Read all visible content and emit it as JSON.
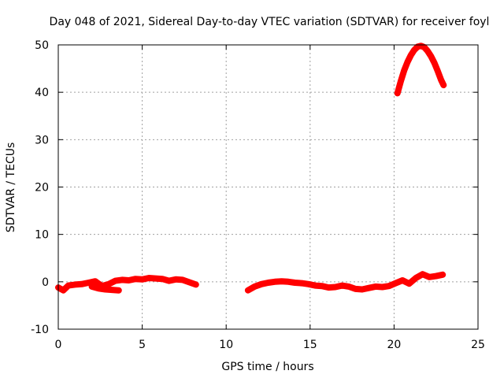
{
  "chart_data": {
    "type": "scatter",
    "title": "Day 048 of 2021, Sidereal Day-to-day VTEC variation (SDTVAR) for receiver foyl",
    "xlabel": "GPS time / hours",
    "ylabel": "SDTVAR / TECUs",
    "xlim": [
      0,
      25
    ],
    "ylim": [
      -10,
      50
    ],
    "xticks": [
      0,
      5,
      10,
      15,
      20,
      25
    ],
    "yticks": [
      -10,
      0,
      10,
      20,
      30,
      40,
      50
    ],
    "xtick_labels": [
      "0",
      "5",
      "10",
      "15",
      "20",
      "25"
    ],
    "ytick_labels": [
      "-10",
      "0",
      "10",
      "20",
      "30",
      "40",
      "50"
    ],
    "grid": true,
    "series_color": "#ff0000",
    "series": [
      {
        "name": "segment-1",
        "x": [
          0.0,
          0.3,
          0.6,
          1.0,
          1.4,
          1.8,
          2.2,
          2.6,
          3.0,
          3.4,
          3.8,
          4.2,
          4.6,
          5.0,
          5.4,
          5.8,
          6.2,
          6.6,
          7.0,
          7.4,
          7.8,
          8.2
        ],
        "y": [
          -1.2,
          -1.8,
          -0.8,
          -0.6,
          -0.5,
          -0.2,
          0.1,
          -0.9,
          -0.5,
          0.2,
          0.4,
          0.3,
          0.6,
          0.5,
          0.8,
          0.7,
          0.6,
          0.2,
          0.5,
          0.4,
          -0.1,
          -0.6
        ]
      },
      {
        "name": "segment-1-branch",
        "x": [
          2.0,
          2.4,
          2.8,
          3.2,
          3.6
        ],
        "y": [
          -1.0,
          -1.4,
          -1.6,
          -1.7,
          -1.8
        ]
      },
      {
        "name": "segment-2",
        "x": [
          11.3,
          11.7,
          12.1,
          12.5,
          12.9,
          13.3,
          13.7,
          14.1,
          14.5,
          14.9,
          15.3,
          15.7,
          16.1,
          16.5,
          16.9,
          17.3,
          17.7,
          18.1,
          18.5,
          18.9,
          19.3,
          19.7,
          20.1,
          20.5,
          20.9,
          21.3,
          21.7,
          22.1,
          22.5,
          22.9
        ],
        "y": [
          -1.8,
          -1.0,
          -0.5,
          -0.2,
          0.0,
          0.1,
          0.0,
          -0.2,
          -0.3,
          -0.5,
          -0.8,
          -0.9,
          -1.2,
          -1.1,
          -0.8,
          -1.0,
          -1.5,
          -1.6,
          -1.3,
          -1.0,
          -1.1,
          -0.9,
          -0.3,
          0.3,
          -0.4,
          0.8,
          1.6,
          1.0,
          1.2,
          1.5
        ]
      },
      {
        "name": "segment-3",
        "x": [
          20.2,
          20.4,
          20.6,
          20.8,
          21.0,
          21.2,
          21.4,
          21.6,
          21.8,
          22.0,
          22.2,
          22.4,
          22.6,
          22.8,
          22.95
        ],
        "y": [
          39.8,
          42.3,
          44.6,
          46.4,
          47.8,
          48.9,
          49.6,
          49.8,
          49.5,
          48.7,
          47.6,
          46.2,
          44.5,
          42.6,
          41.5
        ]
      }
    ]
  }
}
